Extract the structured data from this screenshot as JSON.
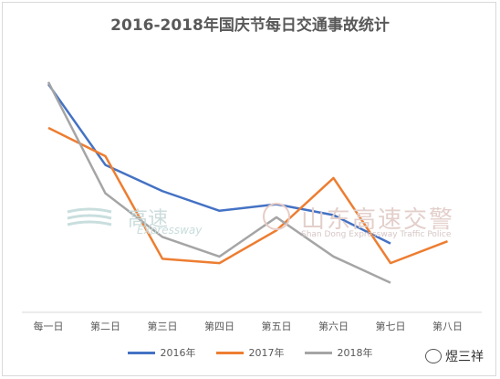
{
  "title": "2016-2018年国庆节每日交通事故统计",
  "watermark_left": {
    "text": "高速",
    "sub": "Expressway"
  },
  "watermark_right": {
    "text": "山东高速交警",
    "sub": "Shan Dong Expressway Traffic Police"
  },
  "brand": {
    "name": "煜三祥",
    "icon": "wechat-icon"
  },
  "chart_data": {
    "type": "line",
    "categories": [
      "每一日",
      "第二日",
      "第三日",
      "第四日",
      "第五日",
      "第六日",
      "第七日",
      "第八日"
    ],
    "grid": false,
    "legend_position": "bottom",
    "series": [
      {
        "name": "2016年",
        "color": "#4472c4",
        "values": [
          92,
          55,
          43,
          34,
          37,
          32,
          19,
          null
        ]
      },
      {
        "name": "2017年",
        "color": "#ed7d31",
        "values": [
          72,
          59,
          12,
          10,
          25,
          49,
          10,
          20
        ]
      },
      {
        "name": "2018年",
        "color": "#a5a5a5",
        "values": [
          93,
          42,
          22,
          13,
          31,
          13,
          1,
          null
        ]
      }
    ]
  }
}
